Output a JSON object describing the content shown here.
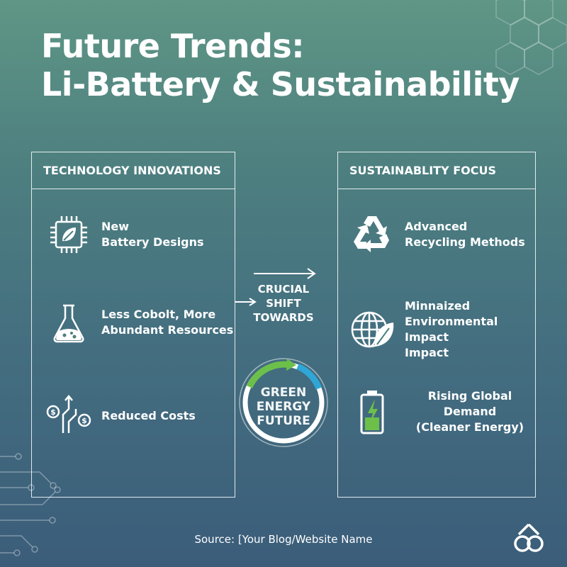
{
  "title": {
    "line1": "Future Trends:",
    "line2": "Li-Battery & Sustainability"
  },
  "left_panel": {
    "header": "TECHNOLOGY INNOVATIONS",
    "items": [
      {
        "icon": "chip-leaf-icon",
        "label": "New\nBattery Designs"
      },
      {
        "icon": "flask-icon",
        "label": "Less Cobolt, More\nAbundant Resources"
      },
      {
        "icon": "cost-arrows-icon",
        "label": "Reduced Costs"
      }
    ]
  },
  "right_panel": {
    "header": "SUSTAINABLITY FOCUS",
    "items": [
      {
        "icon": "recycle-icon",
        "label": "Advanced\nRecycling Methods"
      },
      {
        "icon": "globe-leaf-icon",
        "label": "Minnaized\nEnvironmental Impact\nImpact"
      },
      {
        "icon": "battery-charging-icon",
        "label": "Rising Global Demand\n(Cleaner Energy)"
      }
    ]
  },
  "center": {
    "shift_text": "CRUCIAL\nSHIFT\nTOWARDS",
    "ring_text": "GREEN\nENERGY\nFUTURE"
  },
  "source": "Source: [Your Blog/Website Name",
  "colors": {
    "bg_top": "#5f9685",
    "bg_bottom": "#3b5d7a",
    "accent_green": "#6cc04a",
    "accent_blue": "#2fa6d6"
  }
}
